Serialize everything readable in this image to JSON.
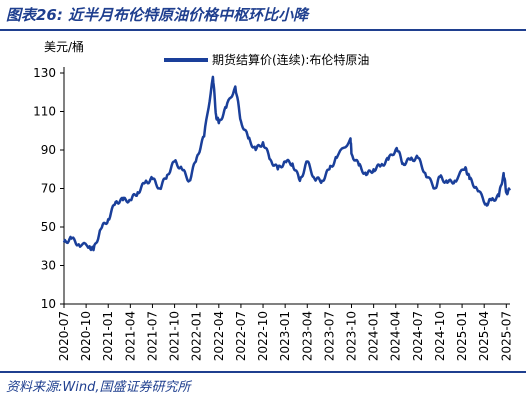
{
  "header": {
    "title": "图表26:  近半月布伦特原油价格中枢环比小降"
  },
  "footer": {
    "source": "资料来源:Wind,国盛证券研究所"
  },
  "chart_data": {
    "type": "line",
    "ylabel": "美元/桶",
    "ylim": [
      10,
      130
    ],
    "yticks": [
      10,
      30,
      50,
      70,
      90,
      110,
      130
    ],
    "xlim": [
      "2020-07",
      "2025-07"
    ],
    "xticks": [
      "2020-07",
      "2020-10",
      "2021-01",
      "2021-04",
      "2021-07",
      "2021-10",
      "2022-01",
      "2022-04",
      "2022-07",
      "2022-10",
      "2023-01",
      "2023-04",
      "2023-07",
      "2023-10",
      "2024-01",
      "2024-04",
      "2024-07",
      "2024-10",
      "2025-01",
      "2025-04",
      "2025-07"
    ],
    "grid": false,
    "legend": "top",
    "series": [
      {
        "name": "期货结算价(连续):布伦特原油",
        "color": "#1a3f9a",
        "points": [
          [
            "2020-07-01",
            42
          ],
          [
            "2020-08-01",
            44
          ],
          [
            "2020-09-01",
            41
          ],
          [
            "2020-10-15",
            40
          ],
          [
            "2020-11-01",
            38
          ],
          [
            "2020-12-01",
            49
          ],
          [
            "2021-01-01",
            54
          ],
          [
            "2021-02-01",
            63
          ],
          [
            "2021-03-01",
            64
          ],
          [
            "2021-04-01",
            64
          ],
          [
            "2021-05-01",
            68
          ],
          [
            "2021-06-01",
            73
          ],
          [
            "2021-07-01",
            75
          ],
          [
            "2021-08-01",
            70
          ],
          [
            "2021-09-01",
            77
          ],
          [
            "2021-10-01",
            84
          ],
          [
            "2021-11-01",
            80
          ],
          [
            "2021-12-01",
            74
          ],
          [
            "2022-01-01",
            86
          ],
          [
            "2022-02-01",
            97
          ],
          [
            "2022-03-07",
            128
          ],
          [
            "2022-03-20",
            108
          ],
          [
            "2022-04-01",
            104
          ],
          [
            "2022-05-01",
            112
          ],
          [
            "2022-06-08",
            123
          ],
          [
            "2022-07-01",
            105
          ],
          [
            "2022-08-01",
            96
          ],
          [
            "2022-09-01",
            90
          ],
          [
            "2022-10-01",
            94
          ],
          [
            "2022-11-01",
            85
          ],
          [
            "2022-12-01",
            80
          ],
          [
            "2023-01-01",
            84
          ],
          [
            "2023-02-01",
            83
          ],
          [
            "2023-03-01",
            74
          ],
          [
            "2023-04-01",
            84
          ],
          [
            "2023-05-01",
            75
          ],
          [
            "2023-06-01",
            74
          ],
          [
            "2023-07-01",
            80
          ],
          [
            "2023-08-01",
            86
          ],
          [
            "2023-09-27",
            96
          ],
          [
            "2023-10-01",
            88
          ],
          [
            "2023-11-01",
            82
          ],
          [
            "2023-12-01",
            77
          ],
          [
            "2024-01-01",
            80
          ],
          [
            "2024-02-01",
            82
          ],
          [
            "2024-03-01",
            85
          ],
          [
            "2024-04-05",
            91
          ],
          [
            "2024-05-01",
            83
          ],
          [
            "2024-06-01",
            85
          ],
          [
            "2024-07-01",
            86
          ],
          [
            "2024-08-01",
            78
          ],
          [
            "2024-09-10",
            70
          ],
          [
            "2024-10-01",
            76
          ],
          [
            "2024-11-01",
            73
          ],
          [
            "2024-12-01",
            74
          ],
          [
            "2025-01-15",
            81
          ],
          [
            "2025-02-01",
            75
          ],
          [
            "2025-03-01",
            70
          ],
          [
            "2025-04-09",
            62
          ],
          [
            "2025-05-01",
            64
          ],
          [
            "2025-06-01",
            66
          ],
          [
            "2025-06-20",
            78
          ],
          [
            "2025-07-01",
            68
          ],
          [
            "2025-07-15",
            69
          ]
        ]
      }
    ]
  }
}
